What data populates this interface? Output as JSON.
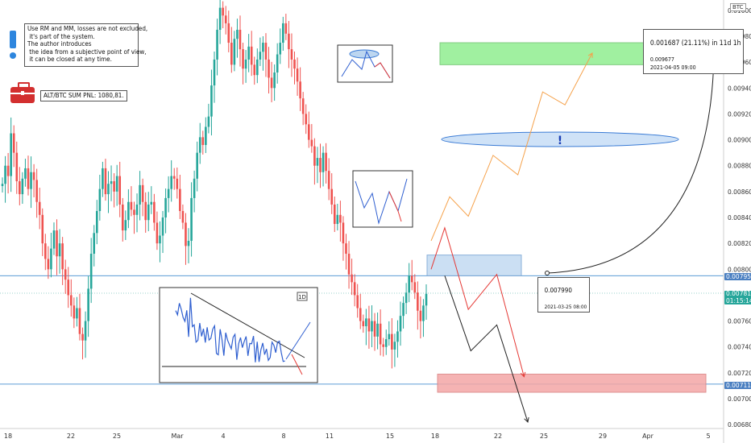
{
  "chart_data": {
    "type": "candlestick",
    "symbol_badge": "BTC",
    "y_ticks": [
      "0.010000",
      "0.009800",
      "0.009600",
      "0.009400",
      "0.009200",
      "0.009000",
      "0.008800",
      "0.008600",
      "0.008400",
      "0.008200",
      "0.008000",
      "0.007800",
      "0.007600",
      "0.007400",
      "0.007200",
      "0.007000",
      "0.006800"
    ],
    "ylim": [
      0.00677,
      0.01008
    ],
    "x_ticks": [
      "18",
      "22",
      "25",
      "Mar",
      "4",
      "8",
      "11",
      "15",
      "18",
      "22",
      "25",
      "29",
      "Apr",
      "5"
    ],
    "price_labels": {
      "upper_level": "0.007950",
      "current_price": "0.007815",
      "countdown": "01:15:14",
      "lower_level": "0.007113"
    },
    "levels": {
      "upper": 0.00795,
      "current": 0.007815,
      "lower": 0.007113
    },
    "zones": {
      "target": [
        0.00958,
        0.00975
      ],
      "entry": [
        0.00795,
        0.00811
      ],
      "stop": [
        0.00705,
        0.00719
      ]
    },
    "measure": {
      "start_price": "0.007990",
      "start_time": "2021-03-25 08:00",
      "result": "0.001687 (21.11%) in 11d 1h",
      "end_price": "0.009677",
      "end_time": "2021-04-05 09:00"
    },
    "close_series": [
      0.00866,
      0.0088,
      0.00872,
      0.00905,
      0.0089,
      0.00868,
      0.00858,
      0.0087,
      0.00878,
      0.00862,
      0.00875,
      0.00869,
      0.00852,
      0.00842,
      0.0082,
      0.00808,
      0.008,
      0.00816,
      0.0083,
      0.0081,
      0.0082,
      0.008,
      0.00792,
      0.0078,
      0.00772,
      0.00762,
      0.0077,
      0.0075,
      0.00745,
      0.0076,
      0.00785,
      0.00812,
      0.00828,
      0.00845,
      0.00862,
      0.00878,
      0.00858,
      0.00866,
      0.00868,
      0.0086,
      0.00872,
      0.0085,
      0.0083,
      0.00838,
      0.00852,
      0.00846,
      0.00842,
      0.0085,
      0.00865,
      0.00852,
      0.00838,
      0.0085,
      0.00852,
      0.00836,
      0.0082,
      0.00826,
      0.0084,
      0.00855,
      0.00862,
      0.00872,
      0.0087,
      0.00862,
      0.00845,
      0.00836,
      0.00818,
      0.00822,
      0.00855,
      0.0087,
      0.0089,
      0.00902,
      0.00896,
      0.0091,
      0.00918,
      0.00942,
      0.00962,
      0.00985,
      0.01002,
      0.00996,
      0.0099,
      0.00975,
      0.00958,
      0.00978,
      0.00985,
      0.0097,
      0.00955,
      0.00962,
      0.00972,
      0.00958,
      0.0095,
      0.00962,
      0.00968,
      0.00975,
      0.00962,
      0.00948,
      0.0094,
      0.00952,
      0.00966,
      0.00975,
      0.0099,
      0.00982,
      0.0097,
      0.00962,
      0.00955,
      0.00945,
      0.00932,
      0.0092,
      0.00912,
      0.009,
      0.00895,
      0.0088,
      0.00886,
      0.00875,
      0.0089,
      0.00876,
      0.00862,
      0.0085,
      0.00835,
      0.00842,
      0.00836,
      0.0082,
      0.00812,
      0.00796,
      0.0079,
      0.0078,
      0.0077,
      0.0076,
      0.00756,
      0.00762,
      0.00752,
      0.0076,
      0.00748,
      0.00758,
      0.00742,
      0.0074,
      0.00746,
      0.0075,
      0.00738,
      0.00744,
      0.00752,
      0.00764,
      0.00774,
      0.00782,
      0.00795,
      0.0079,
      0.00782,
      0.00768,
      0.0076,
      0.00772,
      0.00781
    ],
    "projections": {
      "orange": [
        [
          0.008,
          0.00822
        ],
        [
          0.00815,
          0.00856
        ],
        [
          0.0083,
          0.00841
        ],
        [
          0.0085,
          0.00888
        ],
        [
          0.0087,
          0.00873
        ],
        [
          0.0089,
          0.00937
        ],
        [
          0.00908,
          0.00927
        ],
        [
          0.0093,
          0.00967
        ]
      ],
      "red": [
        [
          0.008,
          0.008
        ],
        [
          0.00811,
          0.00832
        ],
        [
          0.0083,
          0.00769
        ],
        [
          0.00853,
          0.00796
        ],
        [
          0.00875,
          0.00717
        ]
      ],
      "black": [
        [
          0.00811,
          0.00795
        ],
        [
          0.00832,
          0.00737
        ],
        [
          0.00853,
          0.00757
        ],
        [
          0.00878,
          0.00682
        ]
      ]
    },
    "title": "",
    "xlabel": "",
    "ylabel": ""
  },
  "annotations": {
    "disclaimer": "Use RM and MM, losses are not excluded,\n it's part of the system.\nThe author introduces\n the idea from a subjective point of view,\n it can be closed at any time.",
    "pnl": "ALT/BTC SUM PNL: 1080,81.",
    "inset_timeframe": "1D",
    "exclamation": "!"
  },
  "colors": {
    "up": "#26a69a",
    "down": "#ef5350",
    "level_line": "#5b9bd5",
    "current_tag": "#26a69a",
    "level_tag": "#4a7fc1",
    "target_zone": "#90ee90",
    "stop_zone": "#f4a6a6",
    "entry_zone": "#c6dcf2",
    "orange_path": "#f5a14a",
    "red_path": "#e53935",
    "black_path": "#222222",
    "exclaim_blue": "#2e86de",
    "briefcase": "#d32f2f"
  }
}
